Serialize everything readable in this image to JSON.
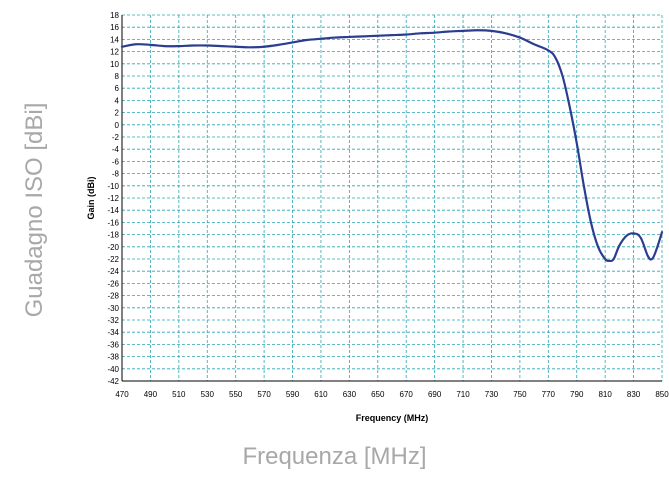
{
  "figure": {
    "outer_ylabel": "Guadagno ISO [dBi]",
    "outer_xlabel": "Frequenza [MHz]"
  },
  "chart_data": {
    "type": "line",
    "xlabel": "Frequency (MHz)",
    "ylabel": "Gain (dBi)",
    "xlim": [
      470,
      850
    ],
    "ylim": [
      -42,
      18
    ],
    "xticks": [
      470,
      490,
      510,
      530,
      550,
      570,
      590,
      610,
      630,
      650,
      670,
      690,
      710,
      730,
      750,
      770,
      790,
      810,
      830,
      850
    ],
    "yticks": [
      18,
      16,
      14,
      12,
      10,
      8,
      6,
      4,
      2,
      0,
      -2,
      -4,
      -6,
      -8,
      -10,
      -12,
      -14,
      -16,
      -18,
      -20,
      -22,
      -24,
      -26,
      -28,
      -30,
      -32,
      -34,
      -36,
      -38,
      -40,
      -42
    ],
    "grid": true,
    "colors": {
      "line": "#2b3d8f",
      "grid": "#2aa6b4",
      "axis": "#000000"
    },
    "series": [
      {
        "x": [
          470,
          480,
          490,
          500,
          510,
          520,
          530,
          540,
          550,
          560,
          570,
          580,
          590,
          600,
          610,
          620,
          630,
          640,
          650,
          660,
          670,
          680,
          690,
          700,
          710,
          720,
          730,
          740,
          750,
          760,
          770,
          775,
          780,
          785,
          790,
          795,
          800,
          805,
          810,
          813,
          816,
          820,
          825,
          830,
          835,
          840,
          843,
          846,
          850
        ],
        "y": [
          12.8,
          13.2,
          13.1,
          12.9,
          12.9,
          13.0,
          13.0,
          12.9,
          12.8,
          12.7,
          12.8,
          13.1,
          13.5,
          13.9,
          14.1,
          14.3,
          14.4,
          14.5,
          14.6,
          14.7,
          14.8,
          15.0,
          15.1,
          15.3,
          15.4,
          15.5,
          15.4,
          15.0,
          14.3,
          13.2,
          12.2,
          11.0,
          8.0,
          3.0,
          -3.0,
          -10.0,
          -16.0,
          -20.0,
          -22.0,
          -22.3,
          -22.0,
          -19.8,
          -18.2,
          -17.8,
          -18.5,
          -21.5,
          -22.0,
          -20.5,
          -17.6
        ]
      }
    ]
  }
}
